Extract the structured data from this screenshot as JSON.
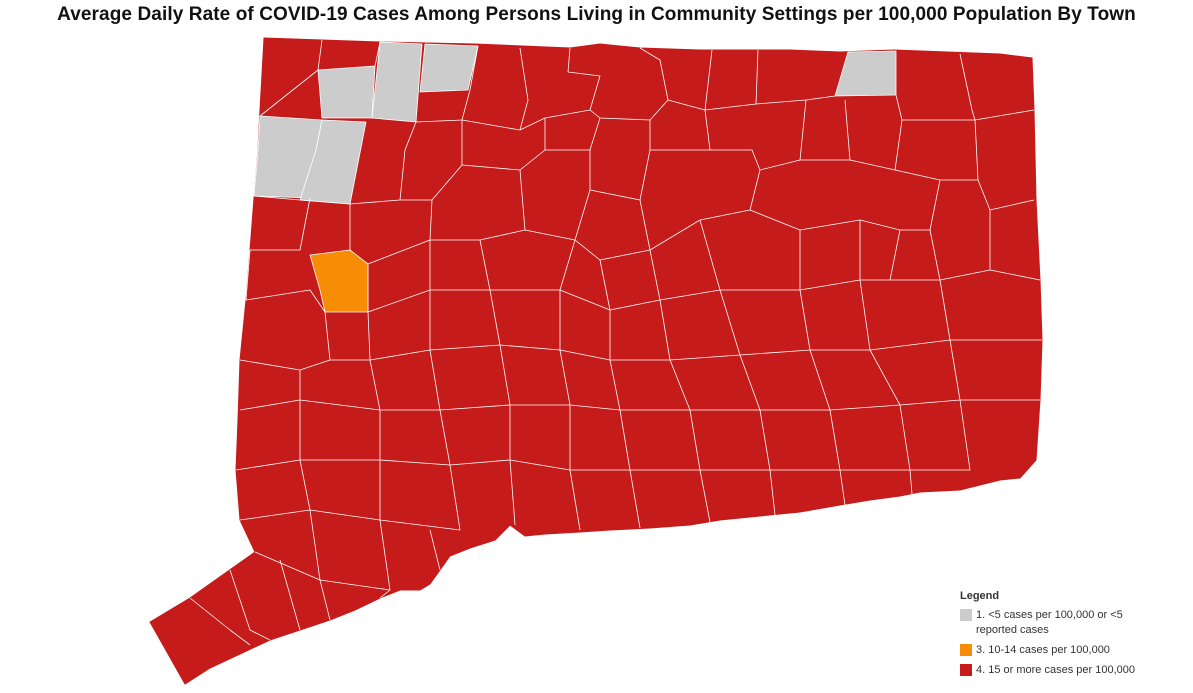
{
  "title": "Average Daily Rate of COVID-19 Cases Among Persons Living in Community Settings per 100,000 Population By Town",
  "colors": {
    "gray": "#cccccc",
    "orange": "#f78c06",
    "red": "#c51b1b",
    "border": "#ffffff"
  },
  "legend": {
    "title": "Legend",
    "items": [
      {
        "label": "1. <5 cases per 100,000 or <5 reported cases",
        "color": "#cccccc"
      },
      {
        "label": "3. 10-14 cases per 100,000",
        "color": "#f78c06"
      },
      {
        "label": "4. 15 or more cases per 100,000",
        "color": "#c51b1b"
      }
    ]
  }
}
